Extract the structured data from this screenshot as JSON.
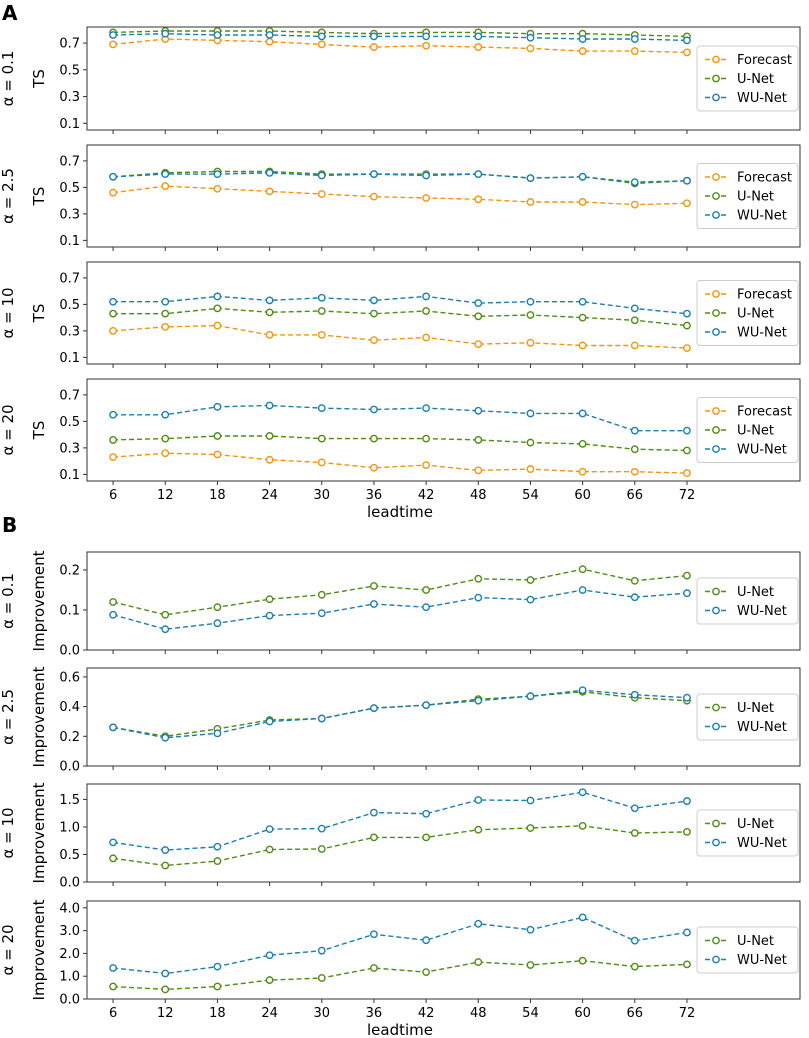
{
  "panels": [
    {
      "letter": "A"
    },
    {
      "letter": "B"
    }
  ],
  "colors": {
    "Forecast": "#f5940c",
    "U-Net": "#4f8c13",
    "WU-Net": "#1a7fb0"
  },
  "chart_data": [
    {
      "type": "line",
      "panel": "A",
      "row_label": "α = 0.1",
      "ylabel": "TS",
      "xlabel": "",
      "x": [
        6,
        12,
        18,
        24,
        30,
        36,
        42,
        48,
        54,
        60,
        66,
        72
      ],
      "ylim": [
        0.05,
        0.82
      ],
      "yticks": [
        0.1,
        0.3,
        0.5,
        0.7
      ],
      "ytick_labels": [
        "0.1",
        "0.3",
        "0.5",
        "0.7"
      ],
      "legend": [
        "Forecast",
        "U-Net",
        "WU-Net"
      ],
      "series": [
        {
          "name": "Forecast",
          "values": [
            0.69,
            0.73,
            0.72,
            0.71,
            0.69,
            0.67,
            0.68,
            0.67,
            0.66,
            0.64,
            0.64,
            0.63
          ]
        },
        {
          "name": "U-Net",
          "values": [
            0.78,
            0.79,
            0.79,
            0.79,
            0.78,
            0.77,
            0.78,
            0.78,
            0.77,
            0.77,
            0.76,
            0.75
          ]
        },
        {
          "name": "WU-Net",
          "values": [
            0.76,
            0.77,
            0.76,
            0.76,
            0.75,
            0.75,
            0.75,
            0.75,
            0.74,
            0.73,
            0.73,
            0.72
          ]
        }
      ]
    },
    {
      "type": "line",
      "panel": "A",
      "row_label": "α = 2.5",
      "ylabel": "TS",
      "xlabel": "",
      "x": [
        6,
        12,
        18,
        24,
        30,
        36,
        42,
        48,
        54,
        60,
        66,
        72
      ],
      "ylim": [
        0.05,
        0.82
      ],
      "yticks": [
        0.1,
        0.3,
        0.5,
        0.7
      ],
      "ytick_labels": [
        "0.1",
        "0.3",
        "0.5",
        "0.7"
      ],
      "legend": [
        "Forecast",
        "U-Net",
        "WU-Net"
      ],
      "series": [
        {
          "name": "Forecast",
          "values": [
            0.46,
            0.51,
            0.49,
            0.47,
            0.45,
            0.43,
            0.42,
            0.41,
            0.39,
            0.39,
            0.37,
            0.38
          ]
        },
        {
          "name": "U-Net",
          "values": [
            0.58,
            0.61,
            0.62,
            0.62,
            0.6,
            0.6,
            0.6,
            0.6,
            0.57,
            0.58,
            0.53,
            0.55
          ]
        },
        {
          "name": "WU-Net",
          "values": [
            0.58,
            0.6,
            0.6,
            0.61,
            0.59,
            0.6,
            0.59,
            0.6,
            0.57,
            0.58,
            0.54,
            0.55
          ]
        }
      ]
    },
    {
      "type": "line",
      "panel": "A",
      "row_label": "α = 10",
      "ylabel": "TS",
      "xlabel": "",
      "x": [
        6,
        12,
        18,
        24,
        30,
        36,
        42,
        48,
        54,
        60,
        66,
        72
      ],
      "ylim": [
        0.05,
        0.82
      ],
      "yticks": [
        0.1,
        0.3,
        0.5,
        0.7
      ],
      "ytick_labels": [
        "0.1",
        "0.3",
        "0.5",
        "0.7"
      ],
      "legend": [
        "Forecast",
        "U-Net",
        "WU-Net"
      ],
      "series": [
        {
          "name": "Forecast",
          "values": [
            0.3,
            0.33,
            0.34,
            0.27,
            0.27,
            0.23,
            0.25,
            0.2,
            0.21,
            0.19,
            0.19,
            0.17
          ]
        },
        {
          "name": "U-Net",
          "values": [
            0.43,
            0.43,
            0.47,
            0.44,
            0.45,
            0.43,
            0.45,
            0.41,
            0.42,
            0.4,
            0.38,
            0.34
          ]
        },
        {
          "name": "WU-Net",
          "values": [
            0.52,
            0.52,
            0.56,
            0.53,
            0.55,
            0.53,
            0.56,
            0.51,
            0.52,
            0.52,
            0.47,
            0.43
          ]
        }
      ]
    },
    {
      "type": "line",
      "panel": "A",
      "row_label": "α = 20",
      "ylabel": "TS",
      "xlabel": "leadtime",
      "x": [
        6,
        12,
        18,
        24,
        30,
        36,
        42,
        48,
        54,
        60,
        66,
        72
      ],
      "ylim": [
        0.05,
        0.82
      ],
      "yticks": [
        0.1,
        0.3,
        0.5,
        0.7
      ],
      "ytick_labels": [
        "0.1",
        "0.3",
        "0.5",
        "0.7"
      ],
      "legend": [
        "Forecast",
        "U-Net",
        "WU-Net"
      ],
      "series": [
        {
          "name": "Forecast",
          "values": [
            0.23,
            0.26,
            0.25,
            0.21,
            0.19,
            0.15,
            0.17,
            0.13,
            0.14,
            0.12,
            0.12,
            0.11
          ]
        },
        {
          "name": "U-Net",
          "values": [
            0.36,
            0.37,
            0.39,
            0.39,
            0.37,
            0.37,
            0.37,
            0.36,
            0.34,
            0.33,
            0.29,
            0.28
          ]
        },
        {
          "name": "WU-Net",
          "values": [
            0.55,
            0.55,
            0.61,
            0.62,
            0.6,
            0.59,
            0.6,
            0.58,
            0.56,
            0.56,
            0.43,
            0.43
          ]
        }
      ]
    },
    {
      "type": "line",
      "panel": "B",
      "row_label": "α = 0.1",
      "ylabel": "Improvement",
      "xlabel": "",
      "x": [
        6,
        12,
        18,
        24,
        30,
        36,
        42,
        48,
        54,
        60,
        66,
        72
      ],
      "ylim": [
        0.0,
        0.245
      ],
      "yticks": [
        0.0,
        0.1,
        0.2
      ],
      "ytick_labels": [
        "0.0",
        "0.1",
        "0.2"
      ],
      "legend": [
        "U-Net",
        "WU-Net"
      ],
      "series": [
        {
          "name": "U-Net",
          "values": [
            0.12,
            0.088,
            0.107,
            0.127,
            0.138,
            0.16,
            0.15,
            0.178,
            0.175,
            0.202,
            0.173,
            0.186
          ]
        },
        {
          "name": "WU-Net",
          "values": [
            0.088,
            0.052,
            0.067,
            0.086,
            0.092,
            0.115,
            0.107,
            0.131,
            0.126,
            0.15,
            0.132,
            0.142
          ]
        }
      ]
    },
    {
      "type": "line",
      "panel": "B",
      "row_label": "α = 2.5",
      "ylabel": "Improvement",
      "xlabel": "",
      "x": [
        6,
        12,
        18,
        24,
        30,
        36,
        42,
        48,
        54,
        60,
        66,
        72
      ],
      "ylim": [
        0.0,
        0.66
      ],
      "yticks": [
        0.0,
        0.2,
        0.4,
        0.6
      ],
      "ytick_labels": [
        "0.0",
        "0.2",
        "0.4",
        "0.6"
      ],
      "legend": [
        "U-Net",
        "WU-Net"
      ],
      "series": [
        {
          "name": "U-Net",
          "values": [
            0.26,
            0.2,
            0.25,
            0.31,
            0.32,
            0.39,
            0.41,
            0.45,
            0.47,
            0.5,
            0.46,
            0.44
          ]
        },
        {
          "name": "WU-Net",
          "values": [
            0.26,
            0.19,
            0.22,
            0.3,
            0.32,
            0.39,
            0.41,
            0.44,
            0.47,
            0.51,
            0.48,
            0.46
          ]
        }
      ]
    },
    {
      "type": "line",
      "panel": "B",
      "row_label": "α = 10",
      "ylabel": "Improvement",
      "xlabel": "",
      "x": [
        6,
        12,
        18,
        24,
        30,
        36,
        42,
        48,
        54,
        60,
        66,
        72
      ],
      "ylim": [
        0.0,
        1.78
      ],
      "yticks": [
        0.0,
        0.5,
        1.0,
        1.5
      ],
      "ytick_labels": [
        "0.0",
        "0.5",
        "1.0",
        "1.5"
      ],
      "legend": [
        "U-Net",
        "WU-Net"
      ],
      "series": [
        {
          "name": "U-Net",
          "values": [
            0.43,
            0.3,
            0.38,
            0.59,
            0.6,
            0.81,
            0.81,
            0.95,
            0.98,
            1.02,
            0.89,
            0.91
          ]
        },
        {
          "name": "WU-Net",
          "values": [
            0.72,
            0.58,
            0.64,
            0.96,
            0.97,
            1.26,
            1.24,
            1.49,
            1.48,
            1.63,
            1.34,
            1.47
          ]
        }
      ]
    },
    {
      "type": "line",
      "panel": "B",
      "row_label": "α = 20",
      "ylabel": "Improvement",
      "xlabel": "leadtime",
      "x": [
        6,
        12,
        18,
        24,
        30,
        36,
        42,
        48,
        54,
        60,
        66,
        72
      ],
      "ylim": [
        0.0,
        4.3
      ],
      "yticks": [
        0.0,
        1.0,
        2.0,
        3.0,
        4.0
      ],
      "ytick_labels": [
        "0.0",
        "1.0",
        "2.0",
        "3.0",
        "4.0"
      ],
      "legend": [
        "U-Net",
        "WU-Net"
      ],
      "series": [
        {
          "name": "U-Net",
          "values": [
            0.55,
            0.42,
            0.55,
            0.83,
            0.92,
            1.36,
            1.18,
            1.62,
            1.49,
            1.68,
            1.42,
            1.52
          ]
        },
        {
          "name": "WU-Net",
          "values": [
            1.36,
            1.12,
            1.42,
            1.92,
            2.12,
            2.84,
            2.58,
            3.3,
            3.04,
            3.58,
            2.56,
            2.92
          ]
        }
      ]
    }
  ]
}
